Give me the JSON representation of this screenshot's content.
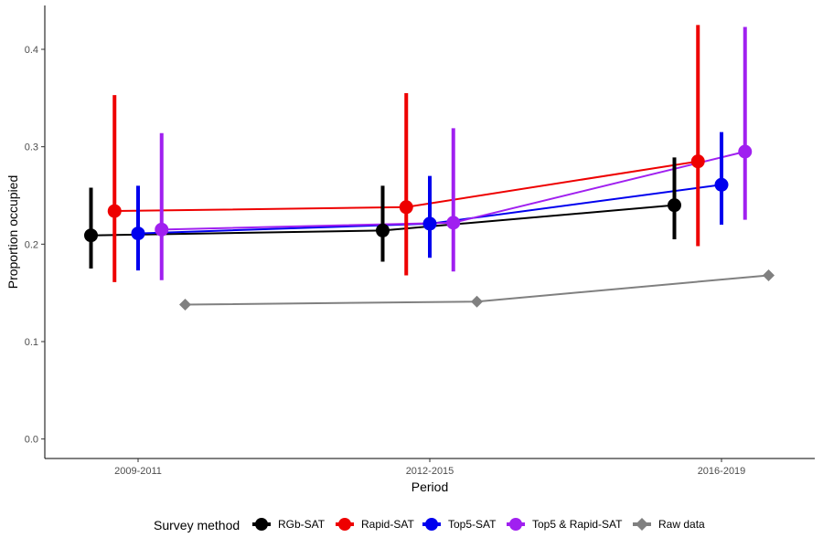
{
  "chart_data": {
    "type": "line",
    "xlabel": "Period",
    "ylabel": "Proportion occupied",
    "categories": [
      "2009-2011",
      "2012-2015",
      "2016-2019"
    ],
    "ylim": [
      -0.02,
      0.445
    ],
    "yticks": [
      0.0,
      0.1,
      0.2,
      0.3,
      0.4
    ],
    "ytick_labels": [
      "0.0",
      "0.1",
      "0.2",
      "0.3",
      "0.4"
    ],
    "grid": false,
    "legend": {
      "title": "Survey method",
      "position": "bottom"
    },
    "series": [
      {
        "name": "RGb-SAT",
        "color": "#000000",
        "marker": "circle",
        "dodge": -0.25,
        "values": [
          0.209,
          0.214,
          0.24
        ],
        "lower": [
          0.175,
          0.182,
          0.205
        ],
        "upper": [
          0.258,
          0.26,
          0.289
        ]
      },
      {
        "name": "Rapid-SAT",
        "color": "#ee0000",
        "marker": "circle",
        "dodge": -0.125,
        "values": [
          0.234,
          0.238,
          0.285
        ],
        "lower": [
          0.161,
          0.168,
          0.198
        ],
        "upper": [
          0.353,
          0.355,
          0.425
        ]
      },
      {
        "name": "Top5-SAT",
        "color": "#0000ee",
        "marker": "circle",
        "dodge": 0.0,
        "values": [
          0.211,
          0.221,
          0.261
        ],
        "lower": [
          0.173,
          0.186,
          0.22
        ],
        "upper": [
          0.26,
          0.27,
          0.315
        ]
      },
      {
        "name": "Top5 & Rapid-SAT",
        "color": "#a020f0",
        "marker": "circle",
        "dodge": 0.125,
        "values": [
          0.215,
          0.222,
          0.295
        ],
        "lower": [
          0.163,
          0.172,
          0.225
        ],
        "upper": [
          0.314,
          0.319,
          0.423
        ]
      },
      {
        "name": "Raw data",
        "color": "#808080",
        "marker": "diamond",
        "dodge": 0.25,
        "values": [
          0.138,
          0.141,
          0.168
        ]
      }
    ]
  }
}
